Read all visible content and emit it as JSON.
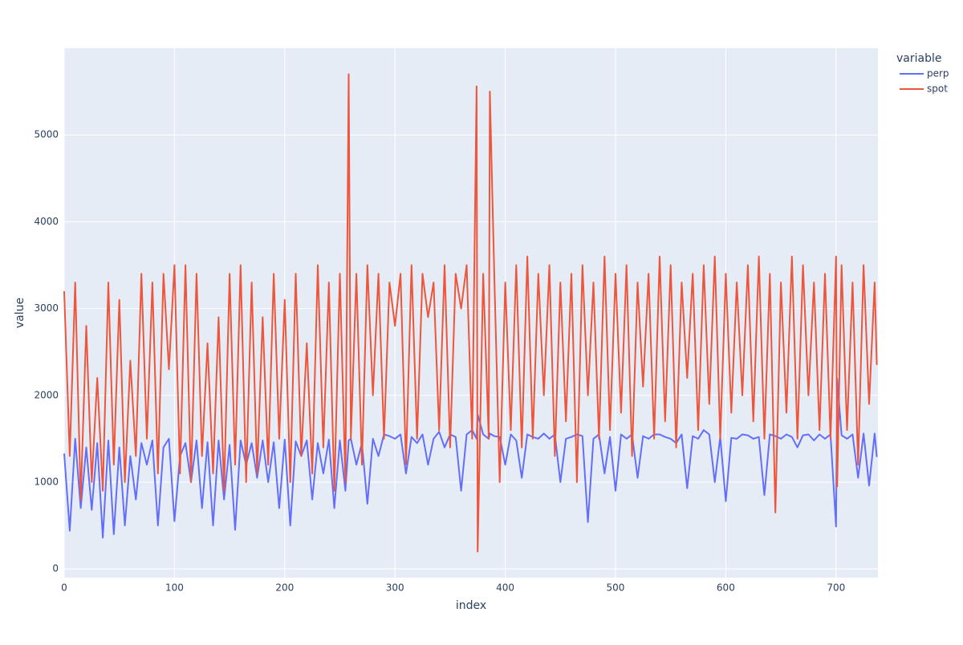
{
  "chart_data": {
    "type": "line",
    "x_label": "index",
    "y_label": "value",
    "legend_title": "variable",
    "x": [
      0,
      5,
      10,
      15,
      20,
      25,
      30,
      35,
      40,
      45,
      50,
      55,
      60,
      65,
      70,
      75,
      80,
      85,
      90,
      95,
      100,
      105,
      110,
      115,
      120,
      125,
      130,
      135,
      140,
      145,
      150,
      155,
      160,
      165,
      170,
      175,
      180,
      185,
      190,
      195,
      200,
      205,
      210,
      215,
      220,
      225,
      230,
      235,
      240,
      245,
      250,
      255,
      258,
      260,
      265,
      270,
      275,
      280,
      285,
      290,
      295,
      300,
      305,
      310,
      315,
      320,
      325,
      330,
      335,
      340,
      345,
      350,
      355,
      360,
      365,
      370,
      374,
      375,
      380,
      385,
      386,
      390,
      395,
      400,
      405,
      410,
      415,
      420,
      425,
      430,
      435,
      440,
      445,
      450,
      455,
      460,
      465,
      470,
      475,
      480,
      485,
      490,
      495,
      500,
      505,
      510,
      515,
      520,
      525,
      530,
      535,
      540,
      545,
      550,
      555,
      560,
      565,
      570,
      575,
      580,
      585,
      590,
      595,
      600,
      605,
      610,
      615,
      620,
      625,
      630,
      635,
      640,
      645,
      650,
      655,
      660,
      665,
      670,
      675,
      680,
      685,
      690,
      695,
      700,
      701,
      705,
      710,
      715,
      720,
      725,
      730,
      735,
      737
    ],
    "series": [
      {
        "name": "perp",
        "color": "#636efa",
        "values": [
          1330,
          440,
          1500,
          700,
          1400,
          680,
          1450,
          360,
          1480,
          400,
          1400,
          500,
          1300,
          800,
          1450,
          1200,
          1480,
          500,
          1400,
          1500,
          550,
          1300,
          1450,
          1000,
          1480,
          700,
          1460,
          500,
          1480,
          800,
          1430,
          450,
          1480,
          1200,
          1450,
          1050,
          1480,
          1000,
          1460,
          700,
          1490,
          500,
          1470,
          1300,
          1480,
          800,
          1450,
          1100,
          1490,
          700,
          1480,
          900,
          1480,
          1500,
          1200,
          1450,
          750,
          1500,
          1300,
          1550,
          1530,
          1500,
          1550,
          1100,
          1520,
          1450,
          1550,
          1200,
          1500,
          1580,
          1400,
          1550,
          1520,
          900,
          1550,
          1600,
          1500,
          1780,
          1550,
          1500,
          1560,
          1530,
          1520,
          1200,
          1550,
          1480,
          1050,
          1550,
          1520,
          1500,
          1560,
          1500,
          1550,
          1000,
          1500,
          1520,
          1550,
          1530,
          540,
          1500,
          1550,
          1100,
          1520,
          900,
          1550,
          1500,
          1550,
          1050,
          1530,
          1500,
          1550,
          1550,
          1520,
          1500,
          1450,
          1550,
          930,
          1530,
          1500,
          1600,
          1550,
          1000,
          1520,
          780,
          1510,
          1500,
          1550,
          1540,
          1500,
          1520,
          850,
          1550,
          1530,
          1500,
          1550,
          1520,
          1400,
          1540,
          1550,
          1480,
          1550,
          1500,
          1550,
          490,
          2190,
          1540,
          1500,
          1550,
          1050,
          1560,
          960,
          1560,
          1290
        ]
      },
      {
        "name": "spot",
        "color": "#EF553B",
        "values": [
          3200,
          1300,
          3300,
          800,
          2800,
          1000,
          2200,
          900,
          3300,
          1200,
          3100,
          1000,
          2400,
          1300,
          3400,
          1500,
          3300,
          1100,
          3400,
          2300,
          3500,
          1100,
          3500,
          1000,
          3400,
          1300,
          2600,
          1100,
          2900,
          900,
          3400,
          1200,
          3500,
          1000,
          3300,
          1100,
          2900,
          1200,
          3400,
          1500,
          3100,
          1000,
          3400,
          1300,
          2600,
          1100,
          3500,
          1400,
          3300,
          900,
          3400,
          1000,
          5700,
          1500,
          3400,
          1200,
          3500,
          2000,
          3400,
          1500,
          3300,
          2800,
          3400,
          1200,
          3500,
          1500,
          3400,
          2900,
          3300,
          1600,
          3500,
          1400,
          3400,
          3000,
          3500,
          1500,
          5560,
          200,
          3400,
          1500,
          5500,
          3400,
          1000,
          3300,
          1600,
          3500,
          1400,
          3600,
          1500,
          3400,
          2000,
          3500,
          1300,
          3300,
          1700,
          3400,
          1000,
          3500,
          2000,
          3300,
          1500,
          3600,
          1600,
          3400,
          1800,
          3500,
          1300,
          3300,
          2100,
          3400,
          1500,
          3600,
          1700,
          3500,
          1400,
          3300,
          2200,
          3400,
          1600,
          3500,
          1900,
          3600,
          1500,
          3400,
          1800,
          3300,
          2000,
          3500,
          1700,
          3600,
          1500,
          3400,
          650,
          3300,
          1800,
          3600,
          1500,
          3500,
          2000,
          3300,
          1600,
          3400,
          1500,
          3600,
          950,
          3500,
          1600,
          3300,
          1200,
          3500,
          1900,
          3300,
          2350
        ]
      }
    ],
    "xlim": [
      0,
      738
    ],
    "ylim": [
      -100,
      6000
    ],
    "xticks": [
      0,
      100,
      200,
      300,
      400,
      500,
      600,
      700
    ],
    "yticks": [
      0,
      1000,
      2000,
      3000,
      4000,
      5000
    ],
    "grid": true
  }
}
